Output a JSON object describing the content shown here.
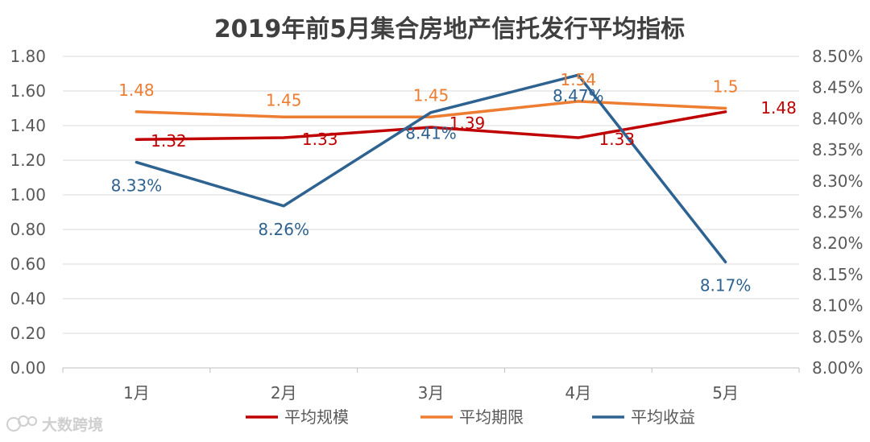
{
  "chart_data": {
    "type": "line",
    "title": "2019年前5月集合房地产信托发行平均指标",
    "categories": [
      "1月",
      "2月",
      "3月",
      "4月",
      "5月"
    ],
    "y_left": {
      "min": 0.0,
      "max": 1.8,
      "step": 0.2,
      "ticks": [
        "0.00",
        "0.20",
        "0.40",
        "0.60",
        "0.80",
        "1.00",
        "1.20",
        "1.40",
        "1.60",
        "1.80"
      ]
    },
    "y_right": {
      "min": 8.0,
      "max": 8.5,
      "step": 0.05,
      "ticks": [
        "8.00%",
        "8.05%",
        "8.10%",
        "8.15%",
        "8.20%",
        "8.25%",
        "8.30%",
        "8.35%",
        "8.40%",
        "8.45%",
        "8.50%"
      ]
    },
    "grid": true,
    "legend_position": "bottom",
    "series": [
      {
        "name": "平均规模",
        "axis": "left",
        "color": "#C00000",
        "values": [
          1.32,
          1.33,
          1.39,
          1.33,
          1.48
        ],
        "labels": [
          "1.32",
          "1.33",
          "1.39",
          "1.33",
          "1.48"
        ]
      },
      {
        "name": "平均期限",
        "axis": "left",
        "color": "#ED7D31",
        "values": [
          1.48,
          1.45,
          1.45,
          1.54,
          1.5
        ],
        "labels": [
          "1.48",
          "1.45",
          "1.45",
          "1.54",
          "1.5"
        ]
      },
      {
        "name": "平均收益",
        "axis": "right",
        "color": "#2E6290",
        "values": [
          8.33,
          8.26,
          8.41,
          8.47,
          8.17
        ],
        "labels": [
          "8.33%",
          "8.26%",
          "8.41%",
          "8.47%",
          "8.17%"
        ]
      }
    ]
  },
  "watermark": "大数跨境"
}
